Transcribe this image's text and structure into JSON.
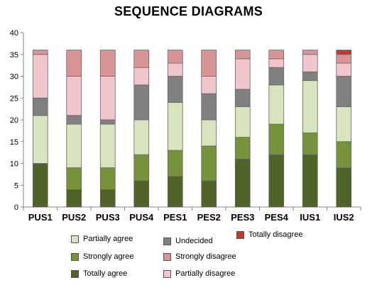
{
  "chart_data": {
    "type": "bar",
    "stacked": true,
    "title": "SEQUENCE DIAGRAMS",
    "xlabel": "",
    "ylabel": "",
    "ylim": [
      0,
      40
    ],
    "yticks": [
      0,
      5,
      10,
      15,
      20,
      25,
      30,
      35,
      40
    ],
    "grid": false,
    "categories": [
      "PUS1",
      "PUS2",
      "PUS3",
      "PUS4",
      "PES1",
      "PES2",
      "PES3",
      "PES4",
      "IUS1",
      "IUS2"
    ],
    "series": [
      {
        "name": "Totally agree",
        "color": "#4f6228",
        "values": [
          10,
          4,
          4,
          6,
          7,
          6,
          11,
          12,
          12,
          9
        ]
      },
      {
        "name": "Strongly agree",
        "color": "#76933c",
        "values": [
          0,
          5,
          5,
          6,
          6,
          8,
          5,
          7,
          5,
          6
        ]
      },
      {
        "name": "Partially agree",
        "color": "#d7e4bd",
        "values": [
          11,
          10,
          10,
          8,
          11,
          6,
          7,
          9,
          12,
          8
        ]
      },
      {
        "name": "Undecided",
        "color": "#808080",
        "values": [
          4,
          2,
          1,
          8,
          6,
          6,
          4,
          4,
          2,
          7
        ]
      },
      {
        "name": "Partially disagree",
        "color": "#f2c4cc",
        "values": [
          10,
          9,
          10,
          4,
          3,
          4,
          7,
          2,
          4,
          3
        ]
      },
      {
        "name": "Strongly disagree",
        "color": "#d99595",
        "values": [
          1,
          6,
          6,
          4,
          3,
          6,
          2,
          2,
          1,
          2
        ]
      },
      {
        "name": "Totally disagree",
        "color": "#c0392b",
        "values": [
          0,
          0,
          0,
          0,
          0,
          0,
          0,
          0,
          0,
          1
        ]
      }
    ],
    "legend": {
      "placement": "bottom",
      "rows": [
        [
          "Partially agree",
          "Undecided",
          "Totally disagree"
        ],
        [
          "Strongly agree",
          "Strongly disagree"
        ],
        [
          "Totally agree",
          "Partially disagree"
        ]
      ]
    }
  }
}
